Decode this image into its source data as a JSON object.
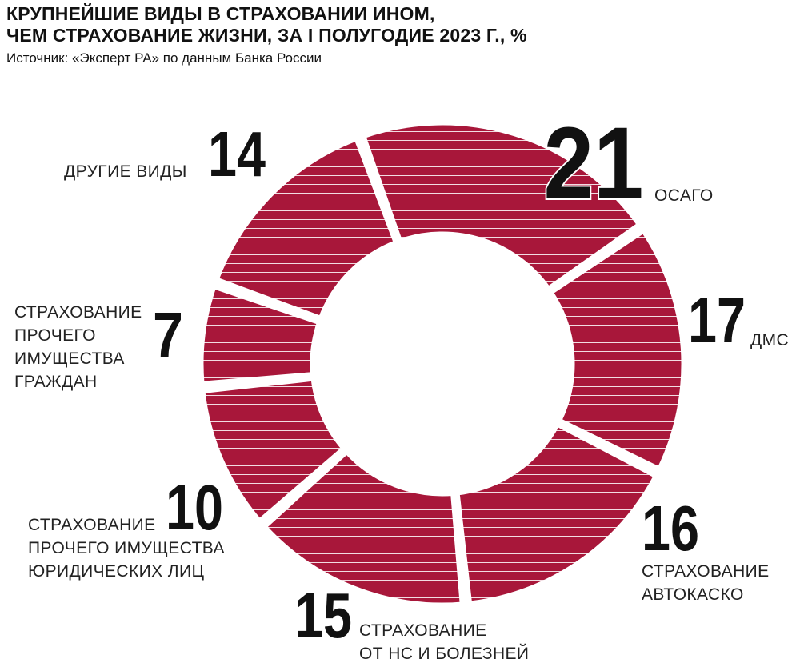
{
  "header": {
    "title_line1": "КРУПНЕЙШИЕ ВИДЫ В СТРАХОВАНИИ ИНОМ,",
    "title_line2": "ЧЕМ СТРАХОВАНИЕ ЖИЗНИ, ЗА I ПОЛУГОДИЕ 2023 Г., %",
    "source": "Источник: «Эксперт РА» по данным Банка России"
  },
  "colors": {
    "slice": "#a8173a",
    "stripe": "#ffffff",
    "text": "#111111"
  },
  "chart_data": {
    "type": "pie",
    "title": "КРУПНЕЙШИЕ ВИДЫ В СТРАХОВАНИИ ИНОМ, ЧЕМ СТРАХОВАНИЕ ЖИЗНИ, ЗА I ПОЛУГОДИЕ 2023 Г., %",
    "donut": true,
    "slices": [
      {
        "label": "ОСАГО",
        "label_lines": [
          "ОСАГО"
        ],
        "value": 21,
        "value_label": "21"
      },
      {
        "label": "ДМС",
        "label_lines": [
          "ДМС"
        ],
        "value": 17,
        "value_label": "17"
      },
      {
        "label": "СТРАХОВАНИЕ АВТОКАСКО",
        "label_lines": [
          "СТРАХОВАНИЕ",
          "АВТОКАСКО"
        ],
        "value": 16,
        "value_label": "16"
      },
      {
        "label": "СТРАХОВАНИЕ ОТ НС И БОЛЕЗНЕЙ",
        "label_lines": [
          "СТРАХОВАНИЕ",
          "ОТ НС И БОЛЕЗНЕЙ"
        ],
        "value": 15,
        "value_label": "15"
      },
      {
        "label": "СТРАХОВАНИЕ ПРОЧЕГО ИМУЩЕСТВА ЮРИДИЧЕСКИХ ЛИЦ",
        "label_lines": [
          "СТРАХОВАНИЕ",
          "ПРОЧЕГО ИМУЩЕСТВА",
          "ЮРИДИЧЕСКИХ ЛИЦ"
        ],
        "value": 10,
        "value_label": "10"
      },
      {
        "label": "СТРАХОВАНИЕ ПРОЧЕГО ИМУЩЕСТВА ГРАЖДАН",
        "label_lines": [
          "СТРАХОВАНИЕ",
          "ПРОЧЕГО",
          "ИМУЩЕСТВА",
          "ГРАЖДАН"
        ],
        "value": 7,
        "value_label": "7"
      },
      {
        "label": "ДРУГИЕ ВИДЫ",
        "label_lines": [
          "ДРУГИЕ ВИДЫ"
        ],
        "value": 14,
        "value_label": "14"
      }
    ]
  }
}
